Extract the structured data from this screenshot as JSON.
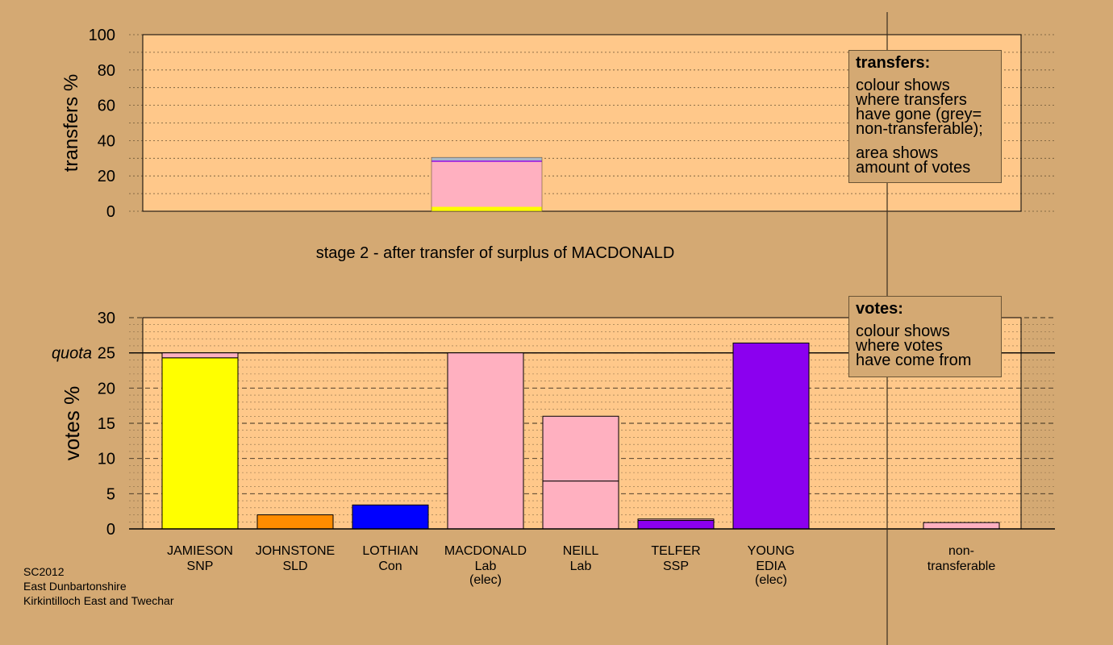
{
  "chart_data": [
    {
      "type": "bar",
      "stacked": true,
      "panel": "transfers",
      "ylabel": "transfers %",
      "ylim": [
        0,
        100
      ],
      "yticks": [
        0,
        20,
        40,
        60,
        80,
        100
      ],
      "title": "stage 2 - after transfer of surplus of MACDONALD",
      "from_candidate": "MACDONALD",
      "segments": [
        {
          "to": "JAMIESON",
          "value": 2.5,
          "color": "#ffff00"
        },
        {
          "to": "NEILL",
          "value": 25.5,
          "color": "#ffb0c0"
        },
        {
          "to": "TELFER",
          "value": 0.7,
          "color": "#8b00ef"
        },
        {
          "to": "non-transferable",
          "value": 1.8,
          "color": "#a8b8c8"
        }
      ],
      "grid": true
    },
    {
      "type": "bar",
      "stacked": true,
      "panel": "votes",
      "ylabel": "votes %",
      "ylim": [
        0,
        30
      ],
      "yticks": [
        0,
        5,
        10,
        15,
        20,
        25,
        30
      ],
      "quota": 25,
      "quota_label": "quota",
      "categories": [
        {
          "name": "JAMIESON",
          "party": "SNP",
          "note": ""
        },
        {
          "name": "JOHNSTONE",
          "party": "SLD",
          "note": ""
        },
        {
          "name": "LOTHIAN",
          "party": "Con",
          "note": ""
        },
        {
          "name": "MACDONALD",
          "party": "Lab",
          "note": "(elec)"
        },
        {
          "name": "NEILL",
          "party": "Lab",
          "note": ""
        },
        {
          "name": "TELFER",
          "party": "SSP",
          "note": ""
        },
        {
          "name": "YOUNG",
          "party": "EDIA",
          "note": "(elec)"
        },
        {
          "name": "",
          "party": "",
          "note": ""
        },
        {
          "name": "non-",
          "party": "transferable",
          "note": ""
        }
      ],
      "bars": [
        [
          {
            "value": 24.3,
            "color": "#ffff00"
          },
          {
            "value": 0.7,
            "color": "#ffb0c0"
          }
        ],
        [
          {
            "value": 2.0,
            "color": "#ff8c00"
          }
        ],
        [
          {
            "value": 3.4,
            "color": "#0000ff"
          }
        ],
        [
          {
            "value": 25.0,
            "color": "#ffb0c0"
          }
        ],
        [
          {
            "value": 6.8,
            "color": "#ffb0c0"
          },
          {
            "value": 9.2,
            "color": "#ffb0c0"
          }
        ],
        [
          {
            "value": 1.2,
            "color": "#8b00ef"
          },
          {
            "value": 0.2,
            "color": "#ffb0c0"
          }
        ],
        [
          {
            "value": 26.4,
            "color": "#8b00ef"
          }
        ],
        [],
        [
          {
            "value": 0.9,
            "color": "#ffb0c0"
          }
        ]
      ],
      "grid": true
    }
  ],
  "legends": {
    "transfers": {
      "title": "transfers:",
      "lines": [
        "colour shows",
        "where transfers",
        "have gone (grey=",
        "non-transferable);"
      ],
      "lines2": [
        "area shows",
        "amount of votes"
      ]
    },
    "votes": {
      "title": "votes:",
      "lines": [
        "colour shows",
        "where votes",
        "have come from"
      ]
    }
  },
  "footer": {
    "line1": "SC2012",
    "line2": "East Dunbartonshire",
    "line3": "Kirkintilloch East and Twechar"
  },
  "colors": {
    "background": "#d4a973",
    "plot_background": "#ffc88a",
    "axis": "#000000"
  }
}
